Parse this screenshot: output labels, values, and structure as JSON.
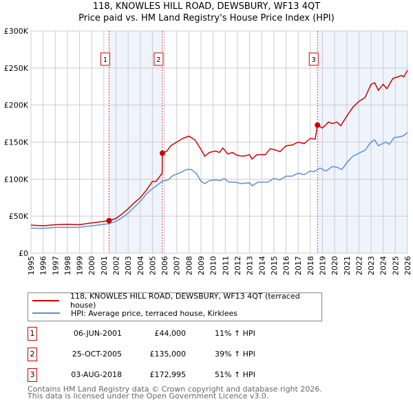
{
  "chart_data": {
    "type": "line",
    "title": "118, KNOWLES HILL ROAD, DEWSBURY, WF13 4QT",
    "subtitle": "Price paid vs. HM Land Registry's House Price Index (HPI)",
    "xlim": [
      1995,
      2026
    ],
    "ylim": [
      0,
      300000
    ],
    "y_ticks": [
      {
        "v": 0,
        "label": "£0"
      },
      {
        "v": 50000,
        "label": "£50K"
      },
      {
        "v": 100000,
        "label": "£100K"
      },
      {
        "v": 150000,
        "label": "£150K"
      },
      {
        "v": 200000,
        "label": "£200K"
      },
      {
        "v": 250000,
        "label": "£250K"
      },
      {
        "v": 300000,
        "label": "£300K"
      }
    ],
    "x_ticks": [
      "1995",
      "1996",
      "1997",
      "1998",
      "1999",
      "2000",
      "2001",
      "2002",
      "2003",
      "2004",
      "2005",
      "2006",
      "2007",
      "2008",
      "2009",
      "2010",
      "2011",
      "2012",
      "2013",
      "2014",
      "2015",
      "2016",
      "2017",
      "2018",
      "2019",
      "2020",
      "2021",
      "2022",
      "2023",
      "2024",
      "2025",
      "2026"
    ],
    "grid": true,
    "series": [
      {
        "name": "118, KNOWLES HILL ROAD, DEWSBURY, WF13 4QT (terraced house)",
        "color": "#cc0000",
        "x": [
          1995,
          1996,
          1997,
          1998,
          1999,
          2000,
          2001,
          2001.43,
          2002,
          2002.5,
          2003,
          2003.5,
          2004,
          2004.5,
          2005,
          2005.3,
          2005.8,
          2005.82,
          2006.2,
          2006.5,
          2007,
          2007.5,
          2008,
          2008.5,
          2009,
          2009.3,
          2009.7,
          2010.2,
          2010.5,
          2010.8,
          2011.2,
          2011.6,
          2012,
          2012.5,
          2013,
          2013.2,
          2013.6,
          2014.3,
          2014.7,
          2015.2,
          2015.5,
          2016,
          2016.5,
          2017,
          2017.5,
          2018,
          2018.4,
          2018.59,
          2019,
          2019.5,
          2019.8,
          2020.2,
          2020.5,
          2021,
          2021.5,
          2022,
          2022.5,
          2023,
          2023.3,
          2023.6,
          2024,
          2024.3,
          2024.8,
          2025.2,
          2025.5,
          2025.7,
          2026
        ],
        "y": [
          38,
          37,
          38.5,
          39,
          38.5,
          41,
          43,
          44,
          47,
          53,
          60,
          68,
          75,
          85,
          97,
          97,
          108,
          135,
          138,
          145,
          150,
          155,
          158,
          153,
          140,
          131,
          136,
          138,
          136,
          142,
          134,
          136,
          132,
          131,
          133,
          127,
          133,
          133,
          141,
          139,
          137,
          145,
          146,
          150,
          148,
          155,
          154,
          173,
          169,
          177,
          175,
          177,
          172,
          185,
          197,
          205,
          210,
          228,
          230,
          220,
          228,
          222,
          236,
          238,
          240,
          238,
          247
        ]
      },
      {
        "name": "HPI: Average price, terraced house, Kirklees",
        "color": "#5b8fd4",
        "x": [
          1995,
          1996,
          1997,
          1998,
          1999,
          2000,
          2001,
          2001.43,
          2002,
          2002.5,
          2003,
          2003.5,
          2004,
          2004.5,
          2005,
          2005.8,
          2006.3,
          2006.7,
          2007.2,
          2007.8,
          2008.2,
          2008.6,
          2009,
          2009.3,
          2009.7,
          2010.2,
          2010.6,
          2010.9,
          2011.3,
          2011.8,
          2012.3,
          2013,
          2013.2,
          2013.7,
          2014.5,
          2015,
          2015.5,
          2016,
          2016.5,
          2017,
          2017.5,
          2018,
          2018.3,
          2018.8,
          2019.3,
          2019.8,
          2020.2,
          2020.6,
          2021,
          2021.5,
          2022,
          2022.5,
          2023,
          2023.3,
          2023.6,
          2024.2,
          2024.5,
          2024.9,
          2025.3,
          2025.6,
          2026
        ],
        "y": [
          34,
          33.5,
          35,
          35,
          35,
          37,
          39,
          40,
          43,
          48,
          54,
          62,
          70,
          80,
          87,
          97,
          99,
          105,
          108,
          113,
          113,
          108,
          97,
          94,
          98,
          99,
          98,
          101,
          96,
          96,
          94,
          95,
          91,
          96,
          96,
          101,
          99,
          104,
          104,
          108,
          106,
          111,
          110,
          115,
          111,
          117,
          116,
          113,
          122,
          131,
          135,
          139,
          150,
          153,
          145,
          150,
          147,
          156,
          157,
          158,
          163
        ]
      }
    ],
    "y_units": "thousands GBP",
    "sales": [
      {
        "n": "1",
        "x": 2001.43,
        "date": "06-JUN-2001",
        "price": "£44,000",
        "value": 44000,
        "hpi": "11% ↑ HPI"
      },
      {
        "n": "2",
        "x": 2005.82,
        "date": "25-OCT-2005",
        "price": "£135,000",
        "value": 135000,
        "hpi": "39% ↑ HPI"
      },
      {
        "n": "3",
        "x": 2018.59,
        "date": "03-AUG-2018",
        "price": "£172,995",
        "value": 172995,
        "hpi": "51% ↑ HPI"
      }
    ],
    "shaded_ranges": [
      [
        2001.43,
        2005.82
      ],
      [
        2018.59,
        2026
      ]
    ],
    "legend_position": "below"
  },
  "footer": {
    "line1": "Contains HM Land Registry data © Crown copyright and database right 2026.",
    "line2": "This data is licensed under the Open Government Licence v3.0."
  }
}
